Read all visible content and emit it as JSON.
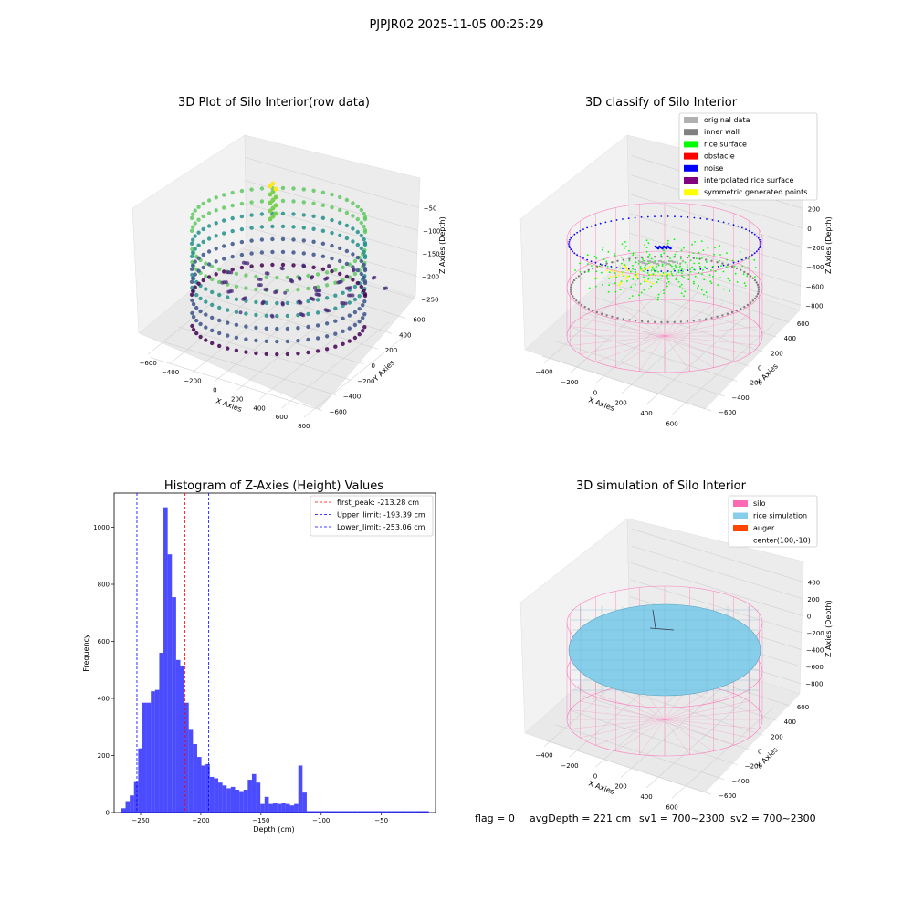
{
  "suptitle": "PJPJR02 2025-11-05 00:25:29",
  "panels": {
    "raw": {
      "title": "3D Plot of Silo Interior(row data)",
      "xlabel": "X Axies",
      "ylabel": "Y Axies",
      "zlabel": "Z Axies (Depth)",
      "xticks": [
        "−600",
        "−400",
        "−200",
        "0",
        "200",
        "400",
        "600",
        "800"
      ],
      "yticks": [
        "−600",
        "−400",
        "−200",
        "0",
        "200",
        "400",
        "600"
      ],
      "zticks": [
        "−50",
        "−100",
        "−150",
        "−200",
        "−250"
      ],
      "colormap": "viridis"
    },
    "classify": {
      "title": "3D classify of Silo Interior",
      "xlabel": "X Axies",
      "ylabel": "Y Axies",
      "zlabel": "Z Axies (Depth)",
      "xticks": [
        "−400",
        "−200",
        "0",
        "200",
        "400",
        "600"
      ],
      "yticks": [
        "−600",
        "−400",
        "−200",
        "0",
        "200",
        "400",
        "600"
      ],
      "zticks": [
        "200",
        "0",
        "−200",
        "−400",
        "−600",
        "−800"
      ],
      "legend": [
        {
          "label": "original data",
          "color": "#b0b0b0"
        },
        {
          "label": "inner wall",
          "color": "#808080"
        },
        {
          "label": "rice surface",
          "color": "#00ff00"
        },
        {
          "label": "obstacle",
          "color": "#ff0000"
        },
        {
          "label": "noise",
          "color": "#0000ff"
        },
        {
          "label": "interpolated rice surface",
          "color": "#800080"
        },
        {
          "label": "symmetric generated points",
          "color": "#ffff00"
        }
      ]
    },
    "simulation": {
      "title": "3D simulation of Silo Interior",
      "xlabel": "X Axies",
      "ylabel": "Y Axies",
      "zlabel": "Z Axies (Depth)",
      "xticks": [
        "−400",
        "−200",
        "0",
        "200",
        "400",
        "600"
      ],
      "yticks": [
        "−600",
        "−400",
        "−200",
        "0",
        "200",
        "400",
        "600"
      ],
      "zticks": [
        "400",
        "200",
        "0",
        "−200",
        "−400",
        "−600",
        "−800"
      ],
      "legend": [
        {
          "label": "silo",
          "color": "#ff69b4"
        },
        {
          "label": "rice simulation",
          "color": "#87ceeb"
        },
        {
          "label": "auger",
          "color": "#ff4500"
        },
        {
          "label": "center(100,-10)",
          "color": ""
        }
      ]
    }
  },
  "footer": {
    "flag": "flag = 0",
    "avg": "avgDepth = 221 cm",
    "sv1": "sv1 = 700~2300",
    "sv2": "sv2 = 700~2300"
  },
  "chart_data": {
    "type": "bar",
    "title": "Histogram of Z-Axies (Height) Values",
    "xlabel": "Depth (cm)",
    "ylabel": "Frequency",
    "xlim": [
      -272,
      -5
    ],
    "ylim": [
      0,
      1120
    ],
    "xticks": [
      -250,
      -200,
      -150,
      -100,
      -50
    ],
    "xtick_labels": [
      "−250",
      "−200",
      "−150",
      "−100",
      "−50"
    ],
    "yticks": [
      0,
      200,
      400,
      600,
      800,
      1000
    ],
    "bar_color": "#0000ff",
    "bar_left_edges": [
      -266,
      -262.5,
      -259,
      -255.5,
      -252,
      -248.5,
      -245,
      -241.5,
      -238,
      -234.5,
      -231,
      -227.5,
      -224,
      -220.5,
      -217,
      -213.5,
      -210,
      -206.5,
      -203,
      -199.5,
      -196,
      -192.5,
      -189,
      -185.5,
      -182,
      -178.5,
      -175,
      -171.5,
      -168,
      -164.5,
      -161,
      -157.5,
      -154,
      -150.5,
      -147,
      -143.5,
      -140,
      -136.5,
      -133,
      -129.5,
      -126,
      -122.5,
      -119,
      -115.5,
      -112,
      -108.5,
      -105,
      -101.5,
      -98,
      -94.5,
      -91,
      -87.5,
      -84,
      -80.5,
      -77,
      -73.5,
      -70,
      -66.5,
      -63,
      -59.5,
      -56,
      -52.5,
      -49,
      -45.5,
      -42,
      -38.5,
      -35,
      -31.5,
      -28,
      -24.5,
      -21,
      -17.5,
      -14
    ],
    "bar_width": 3.5,
    "values": [
      15,
      40,
      60,
      110,
      225,
      385,
      385,
      425,
      430,
      560,
      1070,
      905,
      755,
      535,
      515,
      385,
      290,
      240,
      195,
      165,
      170,
      125,
      120,
      105,
      95,
      85,
      90,
      80,
      75,
      80,
      115,
      135,
      105,
      30,
      55,
      30,
      35,
      30,
      35,
      30,
      25,
      30,
      165,
      70,
      5,
      5,
      5,
      5,
      5,
      5,
      5,
      5,
      5,
      5,
      5,
      5,
      5,
      5,
      5,
      5,
      5,
      5,
      5,
      5,
      5,
      5,
      5,
      5,
      5,
      5,
      5,
      5,
      5
    ],
    "vlines": [
      {
        "x": -213.28,
        "color": "#ff0000",
        "label": "first_peak: -213.28 cm"
      },
      {
        "x": -193.39,
        "color": "#0000ff",
        "label": "Upper_limit: -193.39 cm"
      },
      {
        "x": -253.06,
        "color": "#0000ff",
        "label": "Lower_limit: -253.06 cm"
      }
    ],
    "legend_position": "upper right"
  }
}
